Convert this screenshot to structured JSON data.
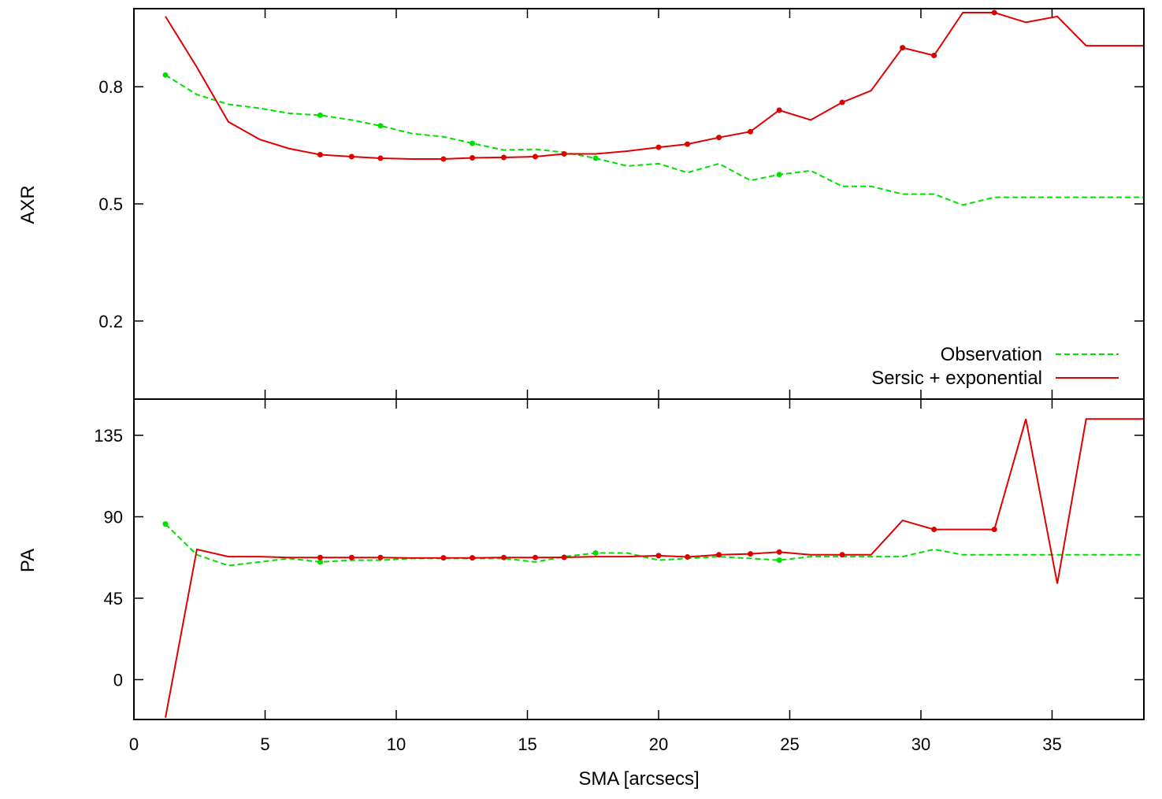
{
  "colors": {
    "observation": "#00e000",
    "model": "#e00000",
    "frame": "#000000"
  },
  "chart_data": [
    {
      "panel": "top",
      "type": "line",
      "ylabel": "AXR",
      "xlim": [
        0,
        38.5
      ],
      "ylim": [
        0.0,
        1.0
      ],
      "yticks": [
        0.2,
        0.5,
        0.8
      ],
      "ytick_labels": [
        "0.2",
        "0.5",
        "0.8"
      ],
      "grid": false,
      "legend": "bottom-right",
      "series": [
        {
          "name": "Observation",
          "style": "dashed",
          "color": "#00e000",
          "x": [
            1.2,
            2.4,
            3.6,
            4.8,
            5.9,
            7.1,
            8.3,
            9.4,
            10.6,
            11.8,
            12.9,
            14.1,
            15.3,
            16.4,
            17.6,
            18.8,
            20.0,
            21.1,
            22.3,
            23.5,
            24.6,
            25.8,
            27.0,
            28.1,
            29.3,
            30.5,
            31.6,
            32.8,
            34.0,
            35.2,
            36.3,
            38.5
          ],
          "y": [
            0.83,
            0.78,
            0.755,
            0.745,
            0.732,
            0.727,
            0.715,
            0.7,
            0.68,
            0.672,
            0.655,
            0.638,
            0.64,
            0.632,
            0.617,
            0.597,
            0.603,
            0.58,
            0.603,
            0.56,
            0.575,
            0.585,
            0.545,
            0.545,
            0.525,
            0.525,
            0.497,
            0.517,
            0.517,
            0.517,
            0.517,
            0.517
          ],
          "markers_at": [
            1.2,
            7.1,
            9.4,
            12.9,
            17.6,
            24.6
          ]
        },
        {
          "name": "Sersic + exponential",
          "style": "solid",
          "color": "#e00000",
          "x": [
            1.2,
            2.4,
            3.6,
            4.8,
            5.9,
            7.1,
            8.3,
            9.4,
            10.6,
            11.8,
            12.9,
            14.1,
            15.3,
            16.4,
            17.6,
            18.8,
            20.0,
            21.1,
            22.3,
            23.5,
            24.6,
            25.8,
            27.0,
            28.1,
            29.3,
            30.5,
            31.6,
            32.8,
            34.0,
            35.2,
            36.3,
            38.5
          ],
          "y": [
            0.98,
            0.85,
            0.71,
            0.665,
            0.642,
            0.626,
            0.621,
            0.617,
            0.615,
            0.615,
            0.618,
            0.619,
            0.621,
            0.628,
            0.628,
            0.635,
            0.645,
            0.653,
            0.67,
            0.685,
            0.74,
            0.715,
            0.76,
            0.79,
            0.9,
            0.88,
            0.99,
            0.99,
            0.965,
            0.98,
            0.905,
            0.905
          ],
          "markers_at": [
            7.1,
            8.3,
            9.4,
            11.8,
            12.9,
            14.1,
            15.3,
            16.4,
            20.0,
            21.1,
            22.3,
            23.5,
            24.6,
            27.0,
            29.3,
            30.5,
            32.8
          ]
        }
      ],
      "legend_entries": [
        "Observation",
        "Sersic + exponential"
      ]
    },
    {
      "panel": "bottom",
      "type": "line",
      "ylabel": "PA",
      "xlabel": "SMA [arcsecs]",
      "xlim": [
        0,
        38.5
      ],
      "xticks": [
        0,
        5,
        10,
        15,
        20,
        25,
        30,
        35
      ],
      "xtick_labels": [
        "0",
        "5",
        "10",
        "15",
        "20",
        "25",
        "30",
        "35"
      ],
      "ylim": [
        -22,
        155
      ],
      "yticks": [
        0,
        45,
        90,
        135
      ],
      "ytick_labels": [
        "0",
        "45",
        "90",
        "135"
      ],
      "grid": false,
      "series": [
        {
          "name": "Observation",
          "style": "dashed",
          "color": "#00e000",
          "x": [
            1.2,
            2.4,
            3.6,
            4.8,
            5.9,
            7.1,
            8.3,
            9.4,
            10.6,
            11.8,
            12.9,
            14.1,
            15.3,
            16.4,
            17.6,
            18.8,
            20.0,
            21.1,
            22.3,
            23.5,
            24.6,
            25.8,
            27.0,
            28.1,
            29.3,
            30.5,
            31.6,
            32.8,
            34.0,
            35.2,
            36.3,
            38.5
          ],
          "y": [
            86,
            69,
            63,
            65,
            67,
            65,
            66,
            66,
            67,
            67,
            67,
            67,
            65,
            68,
            70,
            70,
            66,
            67,
            68,
            67,
            66,
            68,
            68,
            68,
            68,
            72,
            69,
            69,
            69,
            69,
            69,
            69
          ],
          "markers_at": [
            1.2,
            7.1,
            17.6,
            24.6
          ]
        },
        {
          "name": "Sersic + exponential",
          "style": "solid",
          "color": "#e00000",
          "x": [
            1.2,
            2.4,
            3.6,
            4.8,
            5.9,
            7.1,
            8.3,
            9.4,
            10.6,
            11.8,
            12.9,
            14.1,
            15.3,
            16.4,
            17.6,
            18.8,
            20.0,
            21.1,
            22.3,
            23.5,
            24.6,
            25.8,
            27.0,
            28.1,
            29.3,
            30.5,
            31.6,
            32.8,
            34.0,
            35.2,
            36.3,
            38.5
          ],
          "y": [
            -21,
            72,
            68,
            68,
            67.5,
            67.5,
            67.5,
            67.5,
            67.2,
            67.3,
            67.3,
            67.5,
            67.5,
            67.6,
            68,
            68,
            68.5,
            67.8,
            69,
            69.5,
            70.5,
            69,
            69,
            69,
            88,
            83,
            83,
            83,
            144,
            53,
            144,
            144
          ],
          "markers_at": [
            7.1,
            8.3,
            9.4,
            11.8,
            12.9,
            14.1,
            15.3,
            16.4,
            20.0,
            21.1,
            22.3,
            23.5,
            24.6,
            27.0,
            30.5,
            32.8
          ]
        }
      ]
    }
  ]
}
